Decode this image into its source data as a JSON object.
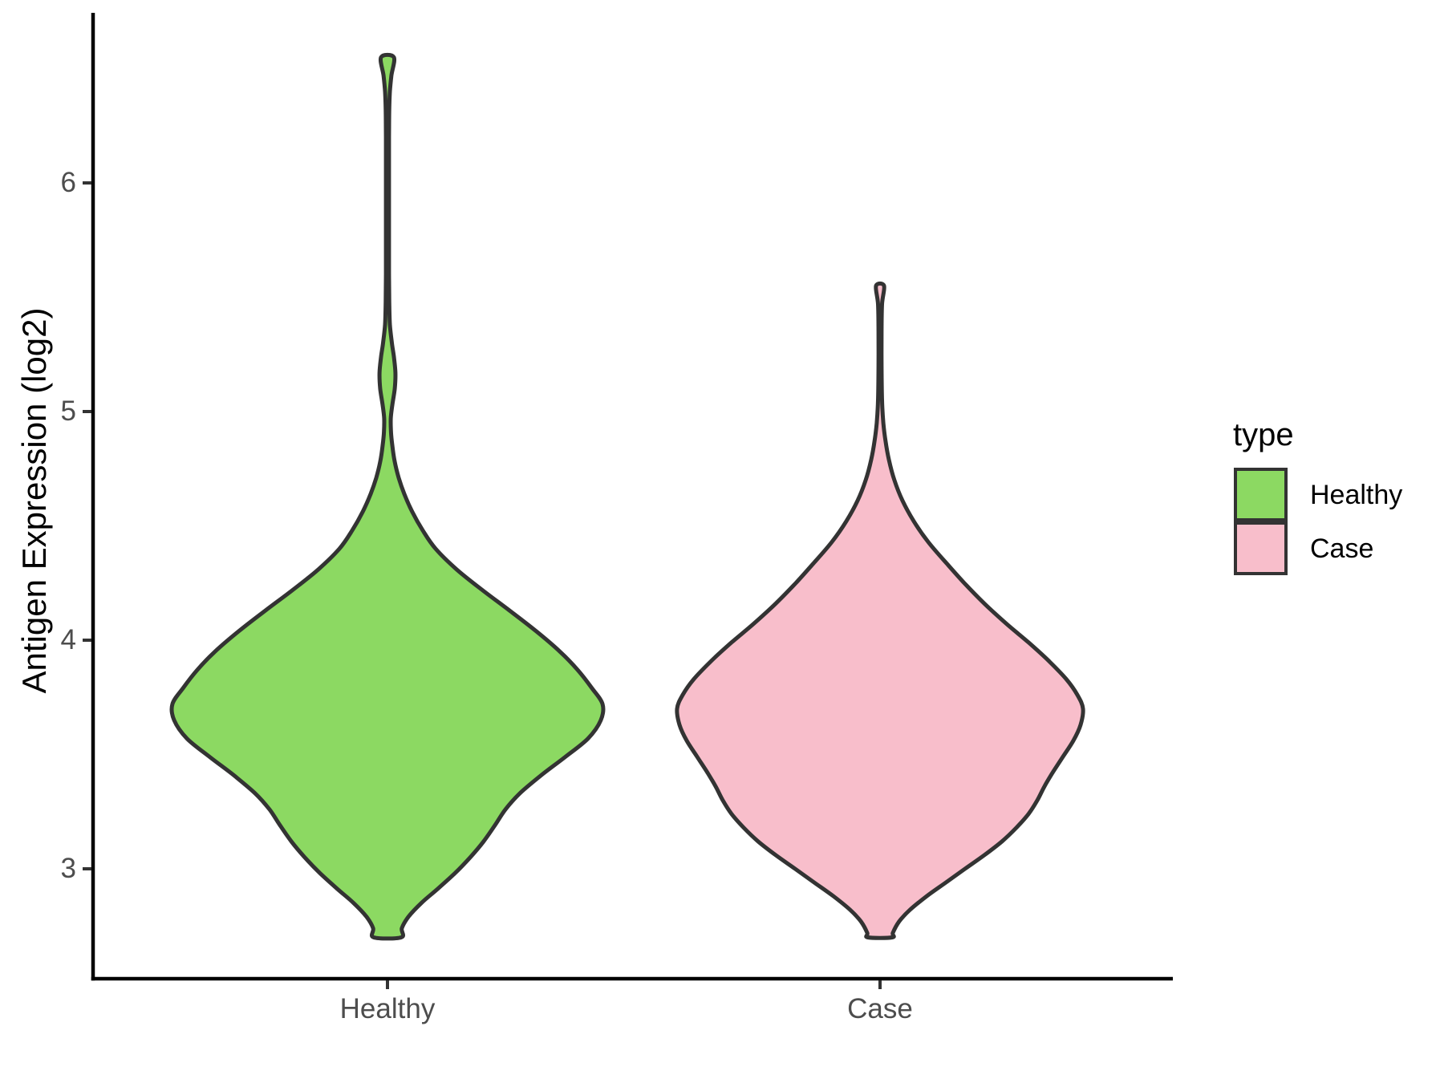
{
  "chart_data": {
    "type": "violin",
    "title": "",
    "ylabel": "Antigen Expression (log2)",
    "xlabel": "",
    "categories": [
      "Healthy",
      "Case"
    ],
    "y_ticks": [
      "6",
      "5",
      "4",
      "3"
    ],
    "ylim": [
      2.52,
      6.74
    ],
    "grid": "off",
    "background": "#FFFFFF",
    "axis_color": "#000000",
    "tick_color": "#333333",
    "tick_text_color": "#4D4D4D",
    "outline_color": "#333333",
    "legend": {
      "title": "type",
      "position": "right",
      "entries": [
        {
          "label": "Healthy",
          "color": "#8CD962"
        },
        {
          "label": "Case",
          "color": "#F8BECB"
        }
      ]
    },
    "series": [
      {
        "name": "Healthy",
        "color": "#8CD962",
        "min": 2.7,
        "max": 6.55,
        "density": [
          [
            6.55,
            0.029
          ],
          [
            6.47,
            0.018
          ],
          [
            6.4,
            0.011
          ],
          [
            6.32,
            0.008
          ],
          [
            6.2,
            0.007
          ],
          [
            6.05,
            0.007
          ],
          [
            5.9,
            0.007
          ],
          [
            5.75,
            0.007
          ],
          [
            5.6,
            0.007
          ],
          [
            5.48,
            0.008
          ],
          [
            5.38,
            0.011
          ],
          [
            5.3,
            0.02
          ],
          [
            5.24,
            0.029
          ],
          [
            5.17,
            0.036
          ],
          [
            5.1,
            0.033
          ],
          [
            5.03,
            0.022
          ],
          [
            4.97,
            0.015
          ],
          [
            4.91,
            0.016
          ],
          [
            4.85,
            0.022
          ],
          [
            4.78,
            0.033
          ],
          [
            4.71,
            0.051
          ],
          [
            4.64,
            0.076
          ],
          [
            4.56,
            0.113
          ],
          [
            4.48,
            0.16
          ],
          [
            4.4,
            0.218
          ],
          [
            4.31,
            0.313
          ],
          [
            4.22,
            0.429
          ],
          [
            4.13,
            0.553
          ],
          [
            4.04,
            0.673
          ],
          [
            3.95,
            0.782
          ],
          [
            3.87,
            0.862
          ],
          [
            3.79,
            0.927
          ],
          [
            3.72,
            0.975
          ],
          [
            3.65,
            0.967
          ],
          [
            3.57,
            0.909
          ],
          [
            3.49,
            0.807
          ],
          [
            3.41,
            0.698
          ],
          [
            3.33,
            0.6
          ],
          [
            3.26,
            0.535
          ],
          [
            3.19,
            0.487
          ],
          [
            3.12,
            0.436
          ],
          [
            3.05,
            0.375
          ],
          [
            2.98,
            0.305
          ],
          [
            2.91,
            0.225
          ],
          [
            2.85,
            0.153
          ],
          [
            2.79,
            0.095
          ],
          [
            2.74,
            0.065
          ],
          [
            2.7,
            0.062
          ]
        ]
      },
      {
        "name": "Case",
        "color": "#F8BECB",
        "min": 2.7,
        "max": 5.55,
        "density": [
          [
            5.55,
            0.018
          ],
          [
            5.47,
            0.009
          ],
          [
            5.35,
            0.007
          ],
          [
            5.2,
            0.007
          ],
          [
            5.05,
            0.009
          ],
          [
            4.95,
            0.015
          ],
          [
            4.87,
            0.025
          ],
          [
            4.79,
            0.04
          ],
          [
            4.7,
            0.065
          ],
          [
            4.61,
            0.102
          ],
          [
            4.52,
            0.153
          ],
          [
            4.43,
            0.218
          ],
          [
            4.34,
            0.298
          ],
          [
            4.25,
            0.382
          ],
          [
            4.16,
            0.473
          ],
          [
            4.07,
            0.575
          ],
          [
            3.99,
            0.673
          ],
          [
            3.91,
            0.764
          ],
          [
            3.83,
            0.844
          ],
          [
            3.76,
            0.895
          ],
          [
            3.7,
            0.92
          ],
          [
            3.63,
            0.909
          ],
          [
            3.56,
            0.876
          ],
          [
            3.49,
            0.829
          ],
          [
            3.42,
            0.782
          ],
          [
            3.36,
            0.745
          ],
          [
            3.3,
            0.713
          ],
          [
            3.24,
            0.673
          ],
          [
            3.18,
            0.618
          ],
          [
            3.12,
            0.553
          ],
          [
            3.06,
            0.473
          ],
          [
            3.0,
            0.385
          ],
          [
            2.94,
            0.298
          ],
          [
            2.88,
            0.211
          ],
          [
            2.82,
            0.135
          ],
          [
            2.77,
            0.087
          ],
          [
            2.72,
            0.058
          ],
          [
            2.7,
            0.055
          ]
        ]
      }
    ]
  }
}
